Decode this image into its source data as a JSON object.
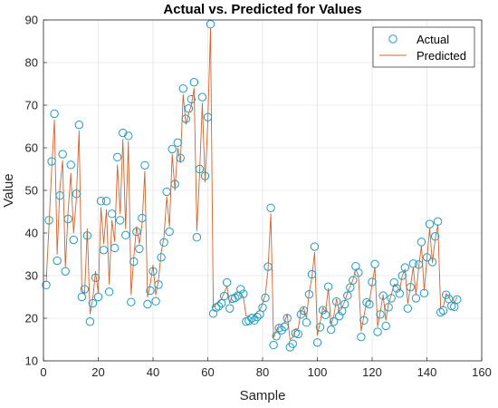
{
  "chart_data": {
    "type": "line",
    "title": "Actual vs. Predicted for Values",
    "xlabel": "Sample",
    "ylabel": "Value",
    "xlim": [
      0,
      160
    ],
    "ylim": [
      10,
      90
    ],
    "xticks": [
      0,
      20,
      40,
      60,
      80,
      100,
      120,
      140,
      160
    ],
    "yticks": [
      10,
      20,
      30,
      40,
      50,
      60,
      70,
      80,
      90
    ],
    "grid": true,
    "legend_position": "top-right",
    "series": [
      {
        "name": "Actual",
        "marker": "circle",
        "color": "#1f9bc2",
        "values": [
          27.8,
          43.0,
          56.8,
          68.0,
          33.5,
          48.8,
          58.5,
          31.0,
          43.3,
          56.0,
          38.4,
          49.2,
          65.4,
          25.0,
          26.8,
          39.4,
          19.2,
          23.5,
          29.5,
          25.0,
          47.5,
          36.0,
          47.5,
          26.2,
          44.5,
          36.5,
          57.8,
          43.0,
          63.5,
          39.5,
          62.8,
          23.8,
          33.3,
          40.3,
          36.3,
          43.5,
          55.9,
          23.3,
          26.5,
          31.0,
          24.0,
          27.9,
          34.3,
          37.8,
          49.7,
          40.3,
          59.7,
          51.5,
          61.2,
          57.6,
          73.9,
          66.8,
          69.2,
          71.4,
          75.4,
          39.0,
          55.0,
          71.9,
          53.4,
          67.2,
          89.0,
          21.1,
          22.5,
          22.8,
          23.5,
          25.2,
          28.4,
          22.3,
          24.6,
          24.8,
          25.3,
          26.8,
          25.7,
          19.2,
          19.4,
          20.0,
          19.5,
          20.3,
          20.9,
          22.5,
          24.8,
          32.1,
          45.9,
          13.7,
          15.8,
          17.7,
          17.2,
          18.0,
          20.0,
          13.2,
          14.0,
          16.5,
          16.3,
          20.9,
          21.8,
          19.0,
          25.6,
          30.3,
          36.8,
          14.3,
          17.9,
          21.9,
          20.8,
          27.4,
          17.3,
          19.2,
          23.9,
          20.5,
          21.7,
          23.3,
          25.3,
          27.2,
          28.9,
          32.2,
          30.7,
          15.6,
          19.5,
          23.7,
          23.3,
          28.5,
          32.7,
          16.8,
          20.9,
          25.3,
          18.2,
          22.6,
          24.7,
          28.4,
          27.0,
          25.8,
          30.0,
          31.9,
          22.3,
          27.3,
          32.8,
          24.7,
          32.6,
          37.9,
          25.9,
          34.3,
          42.1,
          33.2,
          39.2,
          42.7,
          21.4,
          21.8,
          25.5,
          24.5,
          22.9,
          22.7,
          24.4
        ]
      },
      {
        "name": "Predicted",
        "marker": "line",
        "color": "#d9602c",
        "values": [
          28.5,
          41.5,
          55.0,
          66.5,
          35.0,
          50.5,
          57.0,
          32.0,
          45.0,
          54.0,
          40.0,
          48.0,
          64.0,
          27.0,
          25.5,
          41.0,
          21.0,
          24.5,
          31.0,
          26.0,
          46.0,
          37.5,
          45.5,
          28.0,
          43.0,
          38.0,
          56.0,
          44.5,
          62.0,
          41.0,
          61.5,
          25.5,
          34.5,
          41.5,
          37.5,
          42.0,
          54.5,
          25.0,
          28.0,
          32.5,
          25.5,
          29.0,
          35.5,
          39.0,
          48.5,
          41.5,
          58.5,
          50.0,
          60.0,
          56.5,
          72.5,
          65.5,
          68.0,
          70.0,
          74.0,
          40.5,
          54.0,
          70.5,
          52.0,
          66.0,
          88.0,
          22.5,
          23.5,
          23.8,
          24.5,
          26.0,
          27.5,
          23.5,
          25.5,
          25.5,
          26.0,
          26.0,
          25.0,
          20.5,
          20.5,
          21.0,
          20.5,
          21.5,
          21.8,
          23.5,
          25.5,
          31.5,
          44.5,
          15.5,
          17.0,
          18.5,
          18.5,
          19.0,
          21.0,
          15.0,
          15.5,
          17.5,
          17.5,
          21.5,
          22.5,
          20.0,
          26.0,
          29.5,
          35.5,
          16.0,
          19.0,
          22.5,
          21.5,
          27.0,
          18.5,
          20.5,
          24.5,
          21.5,
          22.5,
          24.0,
          26.0,
          27.5,
          29.0,
          31.5,
          30.0,
          17.0,
          20.5,
          24.0,
          24.0,
          28.0,
          32.0,
          18.0,
          21.5,
          25.5,
          19.5,
          23.5,
          25.5,
          28.0,
          27.5,
          26.5,
          30.0,
          31.5,
          23.5,
          27.5,
          32.0,
          25.5,
          32.0,
          37.0,
          26.5,
          34.0,
          41.0,
          33.0,
          38.5,
          42.0,
          22.5,
          22.8,
          25.8,
          25.0,
          23.8,
          23.5,
          25.0
        ]
      }
    ]
  }
}
